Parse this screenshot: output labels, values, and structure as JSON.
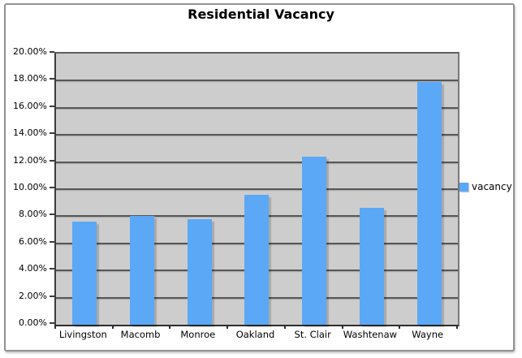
{
  "title": "Residential Vacancy",
  "legend": {
    "label": "vacancy",
    "swatch_color": "#5ba8f6"
  },
  "colors": {
    "bar": "#5ba8f6",
    "plot_background": "#cdcdcd",
    "gridline": "#575757",
    "axis": "#2e2e2e",
    "frame_border": "#919191",
    "text": "#000000"
  },
  "chart_data": {
    "type": "bar",
    "title": "Residential Vacancy",
    "categories": [
      "Livingston",
      "Macomb",
      "Monroe",
      "Oakland",
      "St. Clair",
      "Washtenaw",
      "Wayne"
    ],
    "series": [
      {
        "name": "vacancy",
        "values": [
          7.6,
          8.0,
          7.8,
          9.6,
          12.4,
          8.6,
          17.9
        ]
      }
    ],
    "xlabel": "",
    "ylabel": "",
    "ylim": [
      0,
      20
    ],
    "ytick_step": 2,
    "ytick_labels": [
      "0.00%",
      "2.00%",
      "4.00%",
      "6.00%",
      "8.00%",
      "10.00%",
      "12.00%",
      "14.00%",
      "16.00%",
      "18.00%",
      "20.00%"
    ],
    "grid": true,
    "legend_position": "right-middle",
    "unit": "percent"
  }
}
